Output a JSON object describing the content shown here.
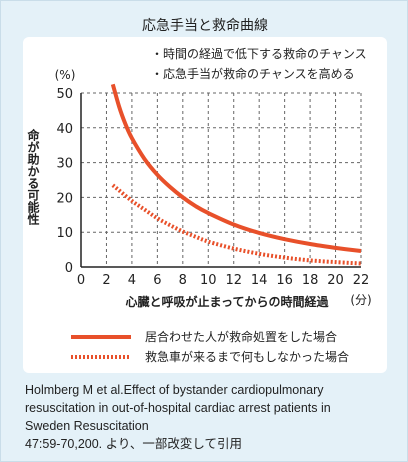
{
  "title": "応急手当と救命曲線",
  "notes": [
    "・時間の経過で低下する救命のチャンス",
    "・応急手当が救命のチャンスを高める"
  ],
  "citation": [
    "Holmberg M et al.Effect of bystander cardiopulmonary",
    "resuscitation in out-of-hospital cardiac arrest patients in",
    "Sweden Resuscitation",
    "47:59-70,200. より、一部改変して引用"
  ],
  "colors": {
    "accent": "#e8502a",
    "background": "#e4f1f8",
    "grid": "#555555"
  },
  "chart_data": {
    "type": "line",
    "ylabel": "命が助かる可能性",
    "yunit": "(%)",
    "xlabel": "心臓と呼吸が止まってからの時間経過",
    "xunit": "(分)",
    "xlim": [
      0,
      22
    ],
    "ylim": [
      0,
      50
    ],
    "xticks": [
      0,
      2,
      4,
      6,
      8,
      10,
      12,
      14,
      16,
      18,
      20,
      22
    ],
    "yticks": [
      0,
      10,
      20,
      30,
      40,
      50
    ],
    "grid": "dashed",
    "series": [
      {
        "name": "居合わせた人が救命処置をした場合",
        "style": "solid",
        "color": "#e8502a",
        "points": [
          [
            2.5,
            52.5
          ],
          [
            3,
            46
          ],
          [
            3.5,
            41
          ],
          [
            4,
            37
          ],
          [
            5,
            31
          ],
          [
            6,
            26.5
          ],
          [
            7,
            23
          ],
          [
            8,
            20
          ],
          [
            9,
            17.5
          ],
          [
            10,
            15.5
          ],
          [
            12,
            12.2
          ],
          [
            14,
            9.8
          ],
          [
            16,
            8
          ],
          [
            18,
            6.6
          ],
          [
            20,
            5.5
          ],
          [
            22,
            4.6
          ]
        ]
      },
      {
        "name": "救急車が来るまで何もしなかった場合",
        "style": "dotted",
        "color": "#e8502a",
        "points": [
          [
            2.5,
            23.5
          ],
          [
            3,
            22
          ],
          [
            4,
            19
          ],
          [
            5,
            16.5
          ],
          [
            6,
            14
          ],
          [
            7,
            12
          ],
          [
            8,
            10.2
          ],
          [
            9,
            8.7
          ],
          [
            10,
            7.3
          ],
          [
            12,
            5.3
          ],
          [
            14,
            3.8
          ],
          [
            16,
            2.7
          ],
          [
            18,
            1.9
          ],
          [
            20,
            1.4
          ],
          [
            22,
            1.0
          ]
        ]
      }
    ]
  }
}
